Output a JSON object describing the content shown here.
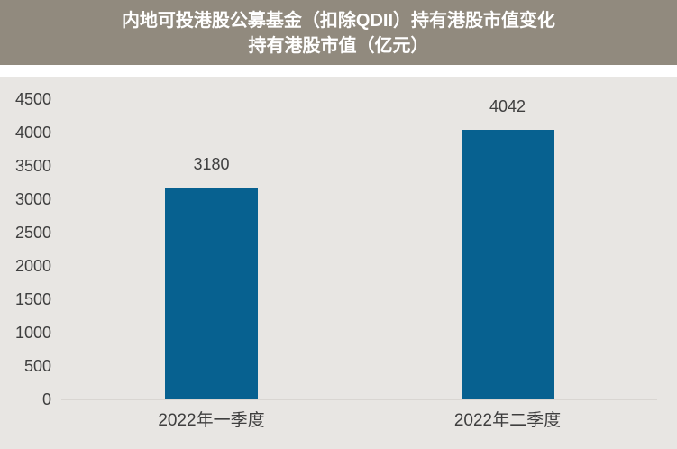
{
  "title": {
    "line1": "内地可投港股公募基金（扣除QDII）持有港股市值变化",
    "line2": "持有港股市值（亿元）"
  },
  "colors": {
    "title_bar_bg": "#918A7E",
    "title_text": "#FFFFFF",
    "plot_bg": "#E8E6E3",
    "bar": "#076190",
    "axis_line": "#D9D6D2",
    "tick_text": "#3F3F3F"
  },
  "chart_data": {
    "type": "bar",
    "title": "内地可投港股公募基金（扣除QDII）持有港股市值变化",
    "subtitle": "持有港股市值（亿元）",
    "categories": [
      "2022年一季度",
      "2022年二季度"
    ],
    "values": [
      3180,
      4042
    ],
    "data_labels": [
      "3180",
      "4042"
    ],
    "xlabel": "",
    "ylabel": "",
    "ylim": [
      0,
      4500
    ],
    "yticks": [
      4500,
      4000,
      3500,
      3000,
      2500,
      2000,
      1500,
      1000,
      500,
      0
    ],
    "grid": false,
    "legend": false
  }
}
